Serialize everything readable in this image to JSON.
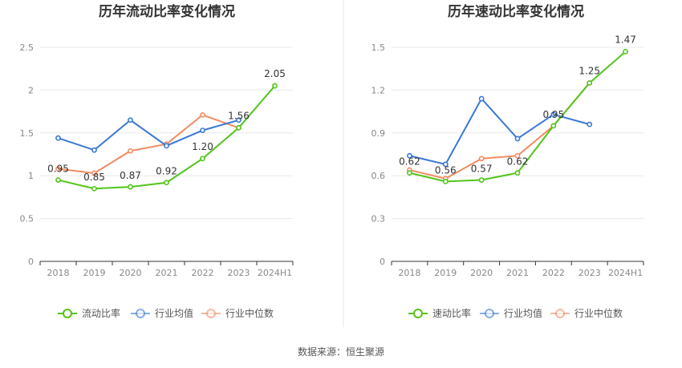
{
  "source": "数据来源：恒生聚源",
  "colors": {
    "green": "#52c41a",
    "blue": "#3a78d4",
    "orange": "#f28c62",
    "grid": "#e8e8e8",
    "axis": "#333333",
    "divider": "#e6e6e6"
  },
  "chart_data": [
    {
      "type": "line",
      "title": "历年流动比率变化情况",
      "categories": [
        "2018",
        "2019",
        "2020",
        "2021",
        "2022",
        "2023",
        "2024H1"
      ],
      "ylim": [
        0,
        2.5
      ],
      "yticks": [
        0,
        0.5,
        1,
        1.5,
        2,
        2.5
      ],
      "ytick_labels": [
        "0",
        "0.5",
        "1",
        "1.5",
        "2",
        "2.5"
      ],
      "grid": true,
      "legend_position": "bottom",
      "series": [
        {
          "name": "流动比率",
          "color_key": "green",
          "values": [
            0.95,
            0.85,
            0.87,
            0.92,
            1.2,
            1.56,
            2.05
          ],
          "labels": [
            "0.95",
            "0.85",
            "0.87",
            "0.92",
            "1.20",
            "1.56",
            "2.05"
          ]
        },
        {
          "name": "行业均值",
          "color_key": "blue",
          "values": [
            1.44,
            1.3,
            1.65,
            1.35,
            1.53,
            1.65,
            null
          ]
        },
        {
          "name": "行业中位数",
          "color_key": "orange",
          "values": [
            1.08,
            1.03,
            1.29,
            1.37,
            1.71,
            1.56,
            null
          ]
        }
      ]
    },
    {
      "type": "line",
      "title": "历年速动比率变化情况",
      "categories": [
        "2018",
        "2019",
        "2020",
        "2021",
        "2022",
        "2023",
        "2024H1"
      ],
      "ylim": [
        0,
        1.5
      ],
      "yticks": [
        0,
        0.3,
        0.6,
        0.9,
        1.2,
        1.5
      ],
      "ytick_labels": [
        "0",
        "0.3",
        "0.6",
        "0.9",
        "1.2",
        "1.5"
      ],
      "grid": true,
      "legend_position": "bottom",
      "series": [
        {
          "name": "速动比率",
          "color_key": "green",
          "values": [
            0.62,
            0.56,
            0.57,
            0.62,
            0.95,
            1.25,
            1.47
          ],
          "labels": [
            "0.62",
            "0.56",
            "0.57",
            "0.62",
            "0.95",
            "1.25",
            "1.47"
          ]
        },
        {
          "name": "行业均值",
          "color_key": "blue",
          "values": [
            0.74,
            0.68,
            1.14,
            0.86,
            1.03,
            0.96,
            null
          ]
        },
        {
          "name": "行业中位数",
          "color_key": "orange",
          "values": [
            0.64,
            0.58,
            0.72,
            0.74,
            0.95,
            1.25,
            null
          ]
        }
      ]
    }
  ]
}
